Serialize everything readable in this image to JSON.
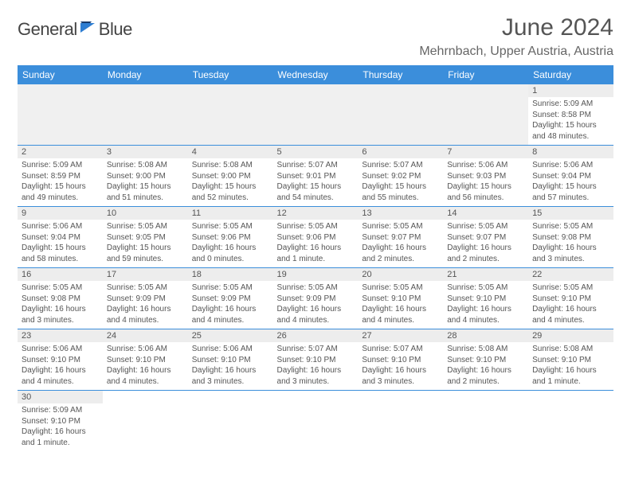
{
  "brand": {
    "name_part1": "General",
    "name_part2": "Blue",
    "text_color": "#444444",
    "accent_color": "#2d7dd2"
  },
  "header": {
    "title": "June 2024",
    "location": "Mehrnbach, Upper Austria, Austria"
  },
  "calendar": {
    "header_bg": "#3b8edb",
    "daynum_bg": "#ededed",
    "day_labels": [
      "Sunday",
      "Monday",
      "Tuesday",
      "Wednesday",
      "Thursday",
      "Friday",
      "Saturday"
    ],
    "leading_blanks": 6,
    "days": [
      {
        "n": "1",
        "sunrise": "5:09 AM",
        "sunset": "8:58 PM",
        "daylight": "15 hours and 48 minutes."
      },
      {
        "n": "2",
        "sunrise": "5:09 AM",
        "sunset": "8:59 PM",
        "daylight": "15 hours and 49 minutes."
      },
      {
        "n": "3",
        "sunrise": "5:08 AM",
        "sunset": "9:00 PM",
        "daylight": "15 hours and 51 minutes."
      },
      {
        "n": "4",
        "sunrise": "5:08 AM",
        "sunset": "9:00 PM",
        "daylight": "15 hours and 52 minutes."
      },
      {
        "n": "5",
        "sunrise": "5:07 AM",
        "sunset": "9:01 PM",
        "daylight": "15 hours and 54 minutes."
      },
      {
        "n": "6",
        "sunrise": "5:07 AM",
        "sunset": "9:02 PM",
        "daylight": "15 hours and 55 minutes."
      },
      {
        "n": "7",
        "sunrise": "5:06 AM",
        "sunset": "9:03 PM",
        "daylight": "15 hours and 56 minutes."
      },
      {
        "n": "8",
        "sunrise": "5:06 AM",
        "sunset": "9:04 PM",
        "daylight": "15 hours and 57 minutes."
      },
      {
        "n": "9",
        "sunrise": "5:06 AM",
        "sunset": "9:04 PM",
        "daylight": "15 hours and 58 minutes."
      },
      {
        "n": "10",
        "sunrise": "5:05 AM",
        "sunset": "9:05 PM",
        "daylight": "15 hours and 59 minutes."
      },
      {
        "n": "11",
        "sunrise": "5:05 AM",
        "sunset": "9:06 PM",
        "daylight": "16 hours and 0 minutes."
      },
      {
        "n": "12",
        "sunrise": "5:05 AM",
        "sunset": "9:06 PM",
        "daylight": "16 hours and 1 minute."
      },
      {
        "n": "13",
        "sunrise": "5:05 AM",
        "sunset": "9:07 PM",
        "daylight": "16 hours and 2 minutes."
      },
      {
        "n": "14",
        "sunrise": "5:05 AM",
        "sunset": "9:07 PM",
        "daylight": "16 hours and 2 minutes."
      },
      {
        "n": "15",
        "sunrise": "5:05 AM",
        "sunset": "9:08 PM",
        "daylight": "16 hours and 3 minutes."
      },
      {
        "n": "16",
        "sunrise": "5:05 AM",
        "sunset": "9:08 PM",
        "daylight": "16 hours and 3 minutes."
      },
      {
        "n": "17",
        "sunrise": "5:05 AM",
        "sunset": "9:09 PM",
        "daylight": "16 hours and 4 minutes."
      },
      {
        "n": "18",
        "sunrise": "5:05 AM",
        "sunset": "9:09 PM",
        "daylight": "16 hours and 4 minutes."
      },
      {
        "n": "19",
        "sunrise": "5:05 AM",
        "sunset": "9:09 PM",
        "daylight": "16 hours and 4 minutes."
      },
      {
        "n": "20",
        "sunrise": "5:05 AM",
        "sunset": "9:10 PM",
        "daylight": "16 hours and 4 minutes."
      },
      {
        "n": "21",
        "sunrise": "5:05 AM",
        "sunset": "9:10 PM",
        "daylight": "16 hours and 4 minutes."
      },
      {
        "n": "22",
        "sunrise": "5:05 AM",
        "sunset": "9:10 PM",
        "daylight": "16 hours and 4 minutes."
      },
      {
        "n": "23",
        "sunrise": "5:06 AM",
        "sunset": "9:10 PM",
        "daylight": "16 hours and 4 minutes."
      },
      {
        "n": "24",
        "sunrise": "5:06 AM",
        "sunset": "9:10 PM",
        "daylight": "16 hours and 4 minutes."
      },
      {
        "n": "25",
        "sunrise": "5:06 AM",
        "sunset": "9:10 PM",
        "daylight": "16 hours and 3 minutes."
      },
      {
        "n": "26",
        "sunrise": "5:07 AM",
        "sunset": "9:10 PM",
        "daylight": "16 hours and 3 minutes."
      },
      {
        "n": "27",
        "sunrise": "5:07 AM",
        "sunset": "9:10 PM",
        "daylight": "16 hours and 3 minutes."
      },
      {
        "n": "28",
        "sunrise": "5:08 AM",
        "sunset": "9:10 PM",
        "daylight": "16 hours and 2 minutes."
      },
      {
        "n": "29",
        "sunrise": "5:08 AM",
        "sunset": "9:10 PM",
        "daylight": "16 hours and 1 minute."
      },
      {
        "n": "30",
        "sunrise": "5:09 AM",
        "sunset": "9:10 PM",
        "daylight": "16 hours and 1 minute."
      }
    ],
    "labels": {
      "sunrise": "Sunrise:",
      "sunset": "Sunset:",
      "daylight": "Daylight:"
    }
  }
}
